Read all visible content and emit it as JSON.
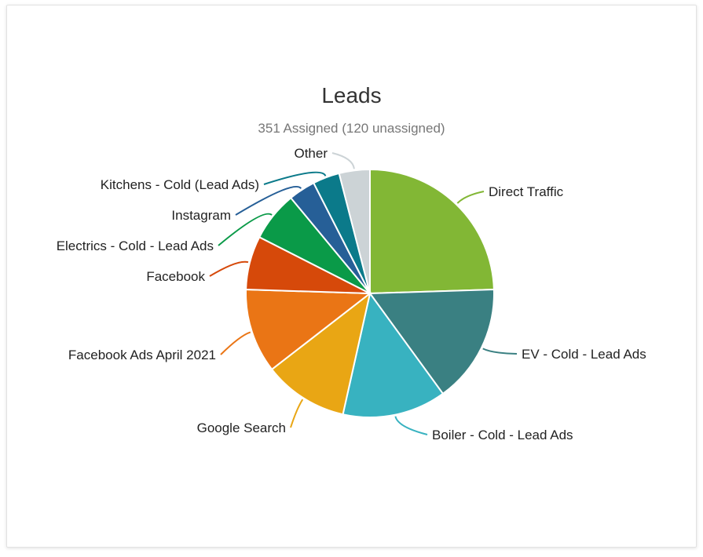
{
  "chart_data": {
    "type": "pie",
    "title": "Leads",
    "subtitle": "351 Assigned (120 unassigned)",
    "slices": [
      {
        "label": "Direct Traffic",
        "value": 24.5,
        "color": "#82b735"
      },
      {
        "label": "EV - Cold - Lead Ads",
        "value": 15.5,
        "color": "#3a8082"
      },
      {
        "label": "Boiler - Cold - Lead Ads",
        "value": 13.5,
        "color": "#38b2c0"
      },
      {
        "label": "Google Search",
        "value": 11.0,
        "color": "#e9a614"
      },
      {
        "label": "Facebook Ads April 2021",
        "value": 11.0,
        "color": "#ea7515"
      },
      {
        "label": "Facebook",
        "value": 7.0,
        "color": "#d6490a"
      },
      {
        "label": "Electrics - Cold - Lead Ads",
        "value": 6.5,
        "color": "#0a9a48"
      },
      {
        "label": "Instagram",
        "value": 3.5,
        "color": "#265f97"
      },
      {
        "label": "Kitchens - Cold (Lead Ads)",
        "value": 3.5,
        "color": "#0b7a8a"
      },
      {
        "label": "Other",
        "value": 4.0,
        "color": "#ccd3d6"
      }
    ]
  }
}
